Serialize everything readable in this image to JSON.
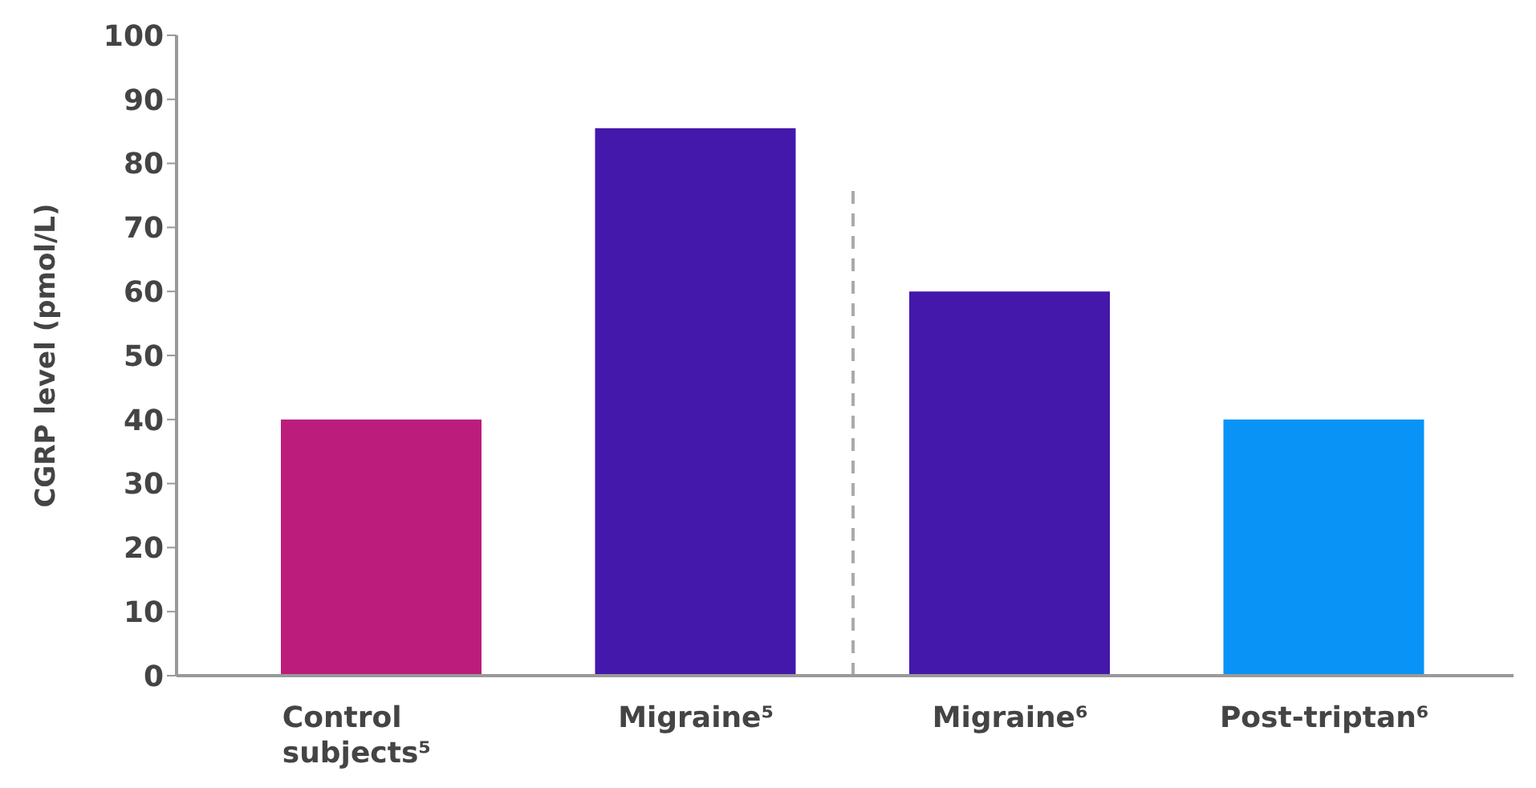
{
  "chart_data": {
    "type": "bar",
    "ylabel": "CGRP level (pmol/L)",
    "categories": [
      "Control subjects⁵",
      "Migraine⁵",
      "Migraine⁶",
      "Post-triptan⁶"
    ],
    "values": [
      40,
      85.5,
      60,
      40
    ],
    "colors": [
      "#bc1c7c",
      "#4318ab",
      "#4318ab",
      "#0a93f7"
    ],
    "ylim": [
      0,
      100
    ],
    "yticks": [
      0,
      10,
      20,
      30,
      40,
      50,
      60,
      70,
      80,
      90,
      100
    ],
    "ref_lines": [
      {
        "axis": "x",
        "value": null,
        "color": "#aaaaaa",
        "line_style": "dashed"
      }
    ],
    "legend": false
  }
}
